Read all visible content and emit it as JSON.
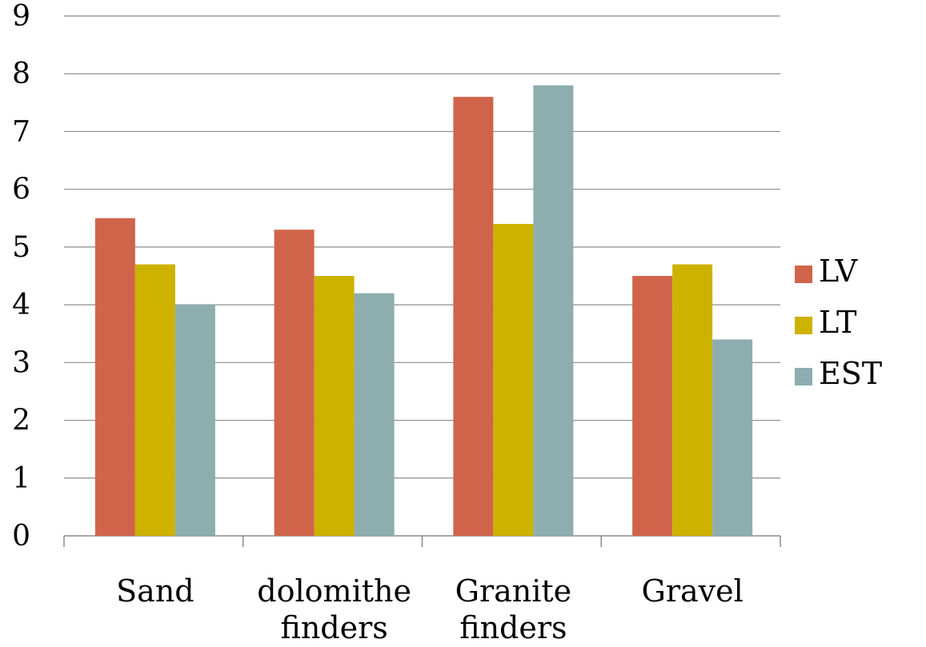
{
  "chart_data": {
    "type": "bar",
    "categories": [
      [
        "Sand"
      ],
      [
        "dolomithe",
        "finders"
      ],
      [
        "Granite",
        "finders"
      ],
      [
        "Gravel"
      ]
    ],
    "series": [
      {
        "name": "LV",
        "color": "#D0644A",
        "values": [
          5.5,
          5.3,
          7.6,
          4.5
        ]
      },
      {
        "name": "LT",
        "color": "#CDB200",
        "values": [
          4.7,
          4.5,
          5.4,
          4.7
        ]
      },
      {
        "name": "EST",
        "color": "#8DADAF",
        "values": [
          4.0,
          4.2,
          7.8,
          3.4
        ]
      }
    ],
    "ylim": [
      0,
      9
    ],
    "yticks": [
      0,
      1,
      2,
      3,
      4,
      5,
      6,
      7,
      8,
      9
    ],
    "grid": true,
    "legend_position": "right",
    "title": "",
    "xlabel": "",
    "ylabel": ""
  }
}
